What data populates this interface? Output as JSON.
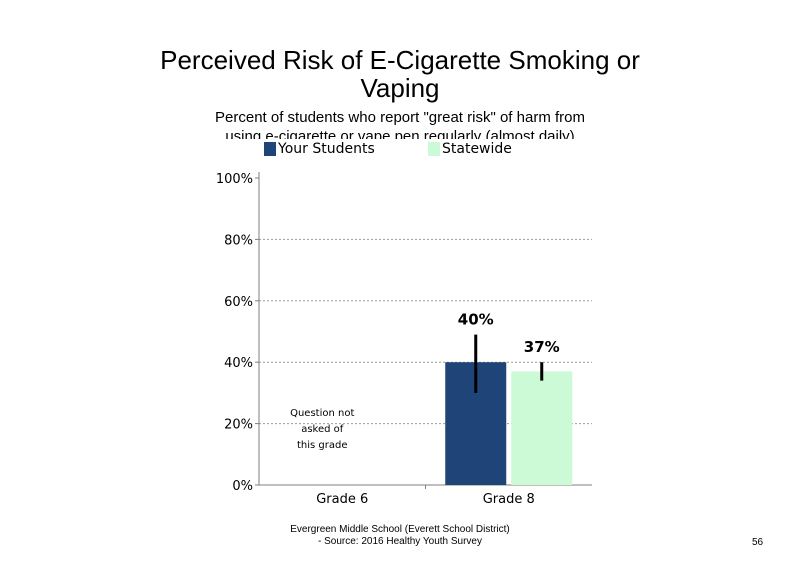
{
  "chart_data": {
    "type": "bar",
    "title_lines": [
      "Perceived Risk of E-Cigarette Smoking or",
      "Vaping"
    ],
    "subtitle_lines": [
      "Percent of students who report \"great risk\" of harm from",
      "using e-cigarette or vape pen regularly (almost daily)"
    ],
    "categories": [
      "Grade 6",
      "Grade 8"
    ],
    "series": [
      {
        "name": "Your Students",
        "color": "#1f4578",
        "values": [
          null,
          40
        ],
        "error_low": [
          null,
          30
        ],
        "error_high": [
          null,
          49
        ],
        "labels": [
          "",
          "40%"
        ]
      },
      {
        "name": "Statewide",
        "color": "#ccfad6",
        "values": [
          null,
          37
        ],
        "error_low": [
          null,
          34
        ],
        "error_high": [
          null,
          40
        ],
        "labels": [
          "",
          "37%"
        ]
      }
    ],
    "ylim": [
      0,
      100
    ],
    "yticks": [
      "0%",
      "20%",
      "40%",
      "60%",
      "80%",
      "100%"
    ],
    "ytick_values": [
      0,
      20,
      40,
      60,
      80,
      100
    ],
    "gridlines": [
      20,
      40,
      60,
      80
    ],
    "legend_position": "top",
    "annotation_lines": [
      "Question not",
      "asked of",
      "this grade"
    ]
  },
  "footer_lines": [
    "Evergreen Middle School (Everett School District)",
    "- Source: 2016 Healthy Youth Survey"
  ],
  "page_number": "56"
}
